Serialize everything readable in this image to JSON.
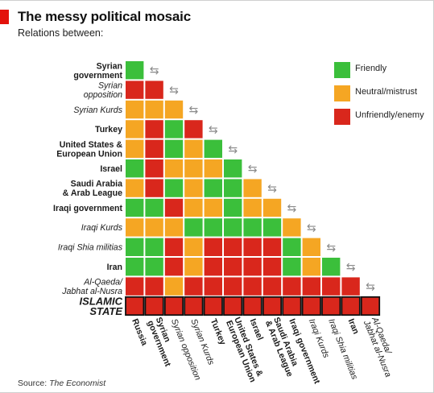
{
  "header": {
    "title": "The messy political mosaic",
    "subtitle": "Relations between:"
  },
  "source": {
    "prefix": "Source:",
    "name": "The Economist"
  },
  "colors": {
    "friendly": "#3bbf3b",
    "neutral": "#f5a623",
    "unfriendly": "#d9271c",
    "islamic_state": "#d9271c",
    "islamic_state_border": "#111111",
    "accent": "#e3120b"
  },
  "chart_data": {
    "type": "heatmap",
    "title": "The messy political mosaic",
    "subtitle": "Relations between:",
    "legend": {
      "position": "top-right",
      "items": [
        {
          "key": "F",
          "label": "Friendly"
        },
        {
          "key": "N",
          "label": "Neutral/mistrust"
        },
        {
          "key": "U",
          "label": "Unfriendly/enemy"
        }
      ]
    },
    "row_labels": [
      {
        "text": "Syrian\ngovernment",
        "style": "bold"
      },
      {
        "text": "Syrian\nopposition",
        "style": "italic"
      },
      {
        "text": "Syrian Kurds",
        "style": "italic"
      },
      {
        "text": "Turkey",
        "style": "bold"
      },
      {
        "text": "United States &\nEuropean Union",
        "style": "bold"
      },
      {
        "text": "Israel",
        "style": "bold"
      },
      {
        "text": "Saudi Arabia\n& Arab League",
        "style": "bold"
      },
      {
        "text": "Iraqi government",
        "style": "bold"
      },
      {
        "text": "Iraqi Kurds",
        "style": "italic"
      },
      {
        "text": "Iraqi Shia militias",
        "style": "italic"
      },
      {
        "text": "Iran",
        "style": "bold"
      },
      {
        "text": "Al-Qaeda/\nJabhat al-Nusra",
        "style": "italic"
      },
      {
        "text": "ISLAMIC\nSTATE",
        "style": "bold-italic"
      }
    ],
    "column_labels": [
      {
        "text": "Russia",
        "style": "bold"
      },
      {
        "text": "Syrian\ngovernment",
        "style": "bold"
      },
      {
        "text": "Syrian opposition",
        "style": "italic"
      },
      {
        "text": "Syrian Kurds",
        "style": "italic"
      },
      {
        "text": "Turkey",
        "style": "bold"
      },
      {
        "text": "United States &\nEuropean Union",
        "style": "bold"
      },
      {
        "text": "Israel",
        "style": "bold"
      },
      {
        "text": "Saudi Arabia\n& Arab League",
        "style": "bold"
      },
      {
        "text": "Iraqi government",
        "style": "bold"
      },
      {
        "text": "Iraqi Kurds",
        "style": "italic"
      },
      {
        "text": "Iraqi Shia militias",
        "style": "italic"
      },
      {
        "text": "Iran",
        "style": "bold"
      },
      {
        "text": "Al-Qaeda/\nJabhat al-Nusra",
        "style": "italic"
      }
    ],
    "values": [
      [
        "F"
      ],
      [
        "U",
        "U"
      ],
      [
        "N",
        "N",
        "N"
      ],
      [
        "N",
        "U",
        "F",
        "U"
      ],
      [
        "N",
        "U",
        "F",
        "N",
        "F"
      ],
      [
        "F",
        "U",
        "N",
        "N",
        "N",
        "F"
      ],
      [
        "N",
        "U",
        "F",
        "N",
        "F",
        "F",
        "N"
      ],
      [
        "F",
        "F",
        "U",
        "N",
        "N",
        "F",
        "N",
        "N"
      ],
      [
        "N",
        "N",
        "N",
        "F",
        "F",
        "F",
        "F",
        "F",
        "N"
      ],
      [
        "F",
        "F",
        "U",
        "N",
        "U",
        "U",
        "U",
        "U",
        "F",
        "N"
      ],
      [
        "F",
        "F",
        "U",
        "N",
        "U",
        "U",
        "U",
        "U",
        "F",
        "N",
        "F"
      ],
      [
        "U",
        "U",
        "N",
        "U",
        "U",
        "U",
        "U",
        "U",
        "U",
        "U",
        "U",
        "U"
      ],
      [
        "U",
        "U",
        "U",
        "U",
        "U",
        "U",
        "U",
        "U",
        "U",
        "U",
        "U",
        "U",
        "U"
      ]
    ]
  }
}
